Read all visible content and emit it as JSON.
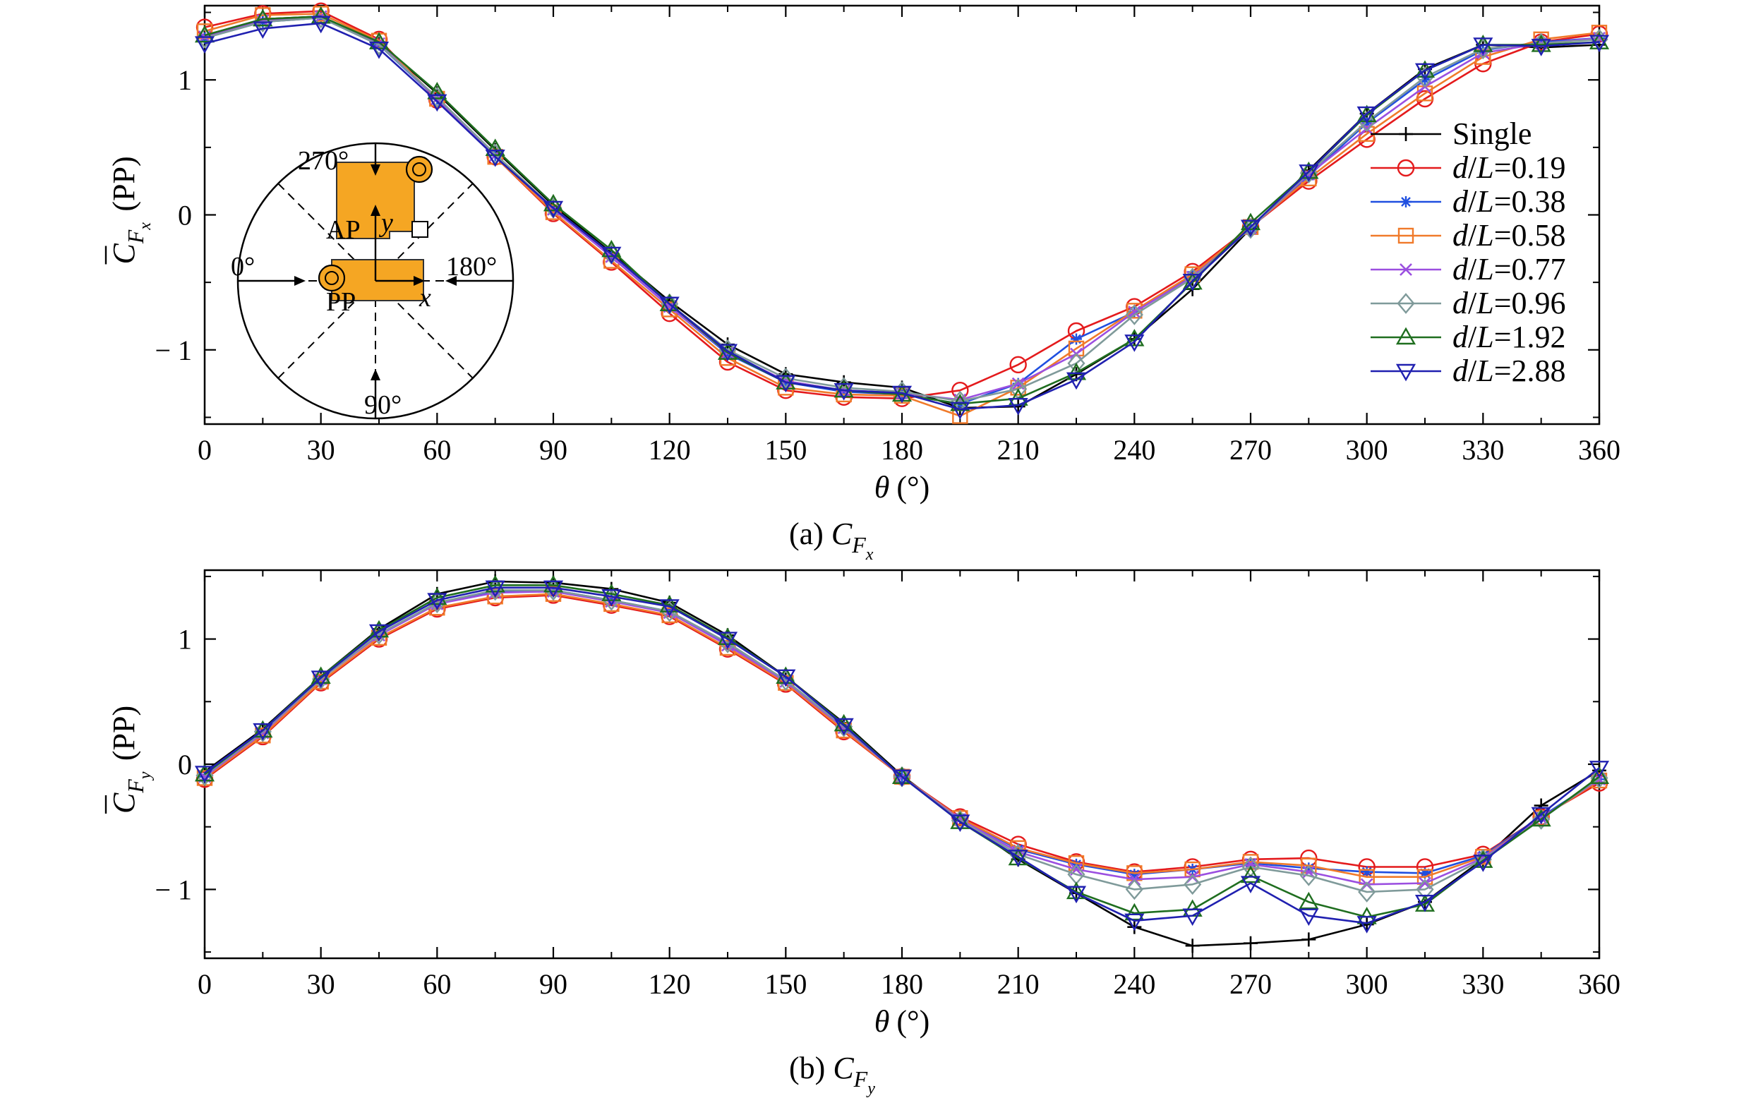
{
  "colors": {
    "Single": "#000000",
    "d/L=0.19": "#e41a1c",
    "d/L=0.38": "#1f4fe0",
    "d/L=0.58": "#f07a2a",
    "d/L=0.77": "#9b4fe0",
    "d/L=0.96": "#7f9a9a",
    "d/L=1.92": "#1f6e1f",
    "d/L=2.88": "#2020b0",
    "inset_fill": "#f5a623"
  },
  "inset": {
    "labels": {
      "deg270": "270°",
      "deg0": "0°",
      "deg180": "180°",
      "deg90": "90°",
      "ap": "AP",
      "pp": "PP",
      "x": "x",
      "y": "y"
    }
  },
  "chart_data": [
    {
      "type": "line",
      "panel": "a",
      "caption": {
        "prefix": "(a) ",
        "symbol": "C",
        "sub": "F",
        "subsub": "x"
      },
      "ylabel": {
        "symbol": "C",
        "sub": "F",
        "subsub": "x",
        "suffix": "(PP)"
      },
      "xlabel": {
        "symbol": "θ",
        "suffix": "(°)"
      },
      "xlim": [
        0,
        360
      ],
      "ylim": [
        -1.55,
        1.55
      ],
      "xticks": [
        "0",
        "30",
        "60",
        "90",
        "120",
        "150",
        "180",
        "210",
        "240",
        "270",
        "300",
        "330",
        "360"
      ],
      "yticks": [
        {
          "v": 1,
          "label": "1"
        },
        {
          "v": 0,
          "label": "0"
        },
        {
          "v": -1,
          "label": "− 1"
        }
      ],
      "legend": {
        "placement": "right"
      },
      "x": [
        0,
        15,
        30,
        45,
        60,
        75,
        90,
        105,
        120,
        135,
        150,
        165,
        180,
        195,
        210,
        225,
        240,
        255,
        270,
        285,
        300,
        315,
        330,
        345,
        360
      ],
      "series": [
        {
          "name": "Single",
          "marker": "plus",
          "values": [
            1.33,
            1.45,
            1.47,
            1.28,
            0.9,
            0.48,
            0.07,
            -0.28,
            -0.64,
            -0.96,
            -1.18,
            -1.24,
            -1.28,
            -1.43,
            -1.42,
            -1.18,
            -0.92,
            -0.55,
            -0.1,
            0.33,
            0.75,
            1.08,
            1.26,
            1.24,
            1.26
          ]
        },
        {
          "name": "d/L=0.19",
          "marker": "circle",
          "values": [
            1.39,
            1.49,
            1.51,
            1.3,
            0.85,
            0.43,
            0.01,
            -0.35,
            -0.73,
            -1.09,
            -1.3,
            -1.35,
            -1.36,
            -1.3,
            -1.11,
            -0.86,
            -0.68,
            -0.42,
            -0.09,
            0.25,
            0.56,
            0.86,
            1.12,
            1.28,
            1.34
          ]
        },
        {
          "name": "d/L=0.38",
          "marker": "asterisk",
          "values": [
            1.31,
            1.43,
            1.46,
            1.26,
            0.86,
            0.44,
            0.04,
            -0.31,
            -0.68,
            -1.03,
            -1.24,
            -1.31,
            -1.33,
            -1.4,
            -1.25,
            -0.92,
            -0.72,
            -0.45,
            -0.09,
            0.29,
            0.68,
            1.0,
            1.22,
            1.28,
            1.31
          ]
        },
        {
          "name": "d/L=0.58",
          "marker": "square",
          "values": [
            1.36,
            1.48,
            1.49,
            1.29,
            0.86,
            0.43,
            0.02,
            -0.34,
            -0.7,
            -1.06,
            -1.28,
            -1.33,
            -1.34,
            -1.49,
            -1.28,
            -0.99,
            -0.71,
            -0.44,
            -0.09,
            0.27,
            0.6,
            0.9,
            1.17,
            1.3,
            1.35
          ]
        },
        {
          "name": "d/L=0.77",
          "marker": "cross",
          "values": [
            1.32,
            1.44,
            1.47,
            1.27,
            0.86,
            0.44,
            0.04,
            -0.31,
            -0.68,
            -1.02,
            -1.23,
            -1.3,
            -1.32,
            -1.37,
            -1.25,
            -1.03,
            -0.72,
            -0.46,
            -0.1,
            0.3,
            0.64,
            0.95,
            1.2,
            1.27,
            1.31
          ]
        },
        {
          "name": "d/L=0.96",
          "marker": "diamond",
          "values": [
            1.31,
            1.43,
            1.46,
            1.26,
            0.87,
            0.45,
            0.05,
            -0.29,
            -0.66,
            -1.0,
            -1.21,
            -1.28,
            -1.31,
            -1.38,
            -1.29,
            -1.1,
            -0.74,
            -0.47,
            -0.1,
            0.31,
            0.69,
            1.02,
            1.23,
            1.27,
            1.3
          ]
        },
        {
          "name": "d/L=1.92",
          "marker": "triangle-up",
          "values": [
            1.33,
            1.45,
            1.47,
            1.28,
            0.91,
            0.49,
            0.08,
            -0.26,
            -0.66,
            -1.02,
            -1.24,
            -1.3,
            -1.33,
            -1.4,
            -1.36,
            -1.17,
            -0.92,
            -0.5,
            -0.06,
            0.32,
            0.74,
            1.07,
            1.26,
            1.26,
            1.28
          ]
        },
        {
          "name": "d/L=2.88",
          "marker": "triangle-down",
          "values": [
            1.27,
            1.38,
            1.42,
            1.23,
            0.84,
            0.43,
            0.05,
            -0.29,
            -0.66,
            -1.01,
            -1.24,
            -1.3,
            -1.32,
            -1.44,
            -1.41,
            -1.22,
            -0.94,
            -0.49,
            -0.09,
            0.32,
            0.75,
            1.07,
            1.26,
            1.25,
            1.28
          ]
        }
      ]
    },
    {
      "type": "line",
      "panel": "b",
      "caption": {
        "prefix": "(b) ",
        "symbol": "C",
        "sub": "F",
        "subsub": "y"
      },
      "ylabel": {
        "symbol": "C",
        "sub": "F",
        "subsub": "y",
        "suffix": "(PP)"
      },
      "xlabel": {
        "symbol": "θ",
        "suffix": "(°)"
      },
      "xlim": [
        0,
        360
      ],
      "ylim": [
        -1.55,
        1.55
      ],
      "xticks": [
        "0",
        "30",
        "60",
        "90",
        "120",
        "150",
        "180",
        "210",
        "240",
        "270",
        "300",
        "330",
        "360"
      ],
      "yticks": [
        {
          "v": 1,
          "label": "1"
        },
        {
          "v": 0,
          "label": "0"
        },
        {
          "v": -1,
          "label": "− 1"
        }
      ],
      "x": [
        0,
        15,
        30,
        45,
        60,
        75,
        90,
        105,
        120,
        135,
        150,
        165,
        180,
        195,
        210,
        225,
        240,
        255,
        270,
        285,
        300,
        315,
        330,
        345,
        360
      ],
      "series": [
        {
          "name": "Single",
          "marker": "plus",
          "values": [
            -0.06,
            0.28,
            0.7,
            1.08,
            1.36,
            1.46,
            1.45,
            1.4,
            1.29,
            1.03,
            0.7,
            0.33,
            -0.09,
            -0.44,
            -0.76,
            -1.03,
            -1.3,
            -1.45,
            -1.43,
            -1.4,
            -1.28,
            -1.1,
            -0.76,
            -0.33,
            -0.05
          ]
        },
        {
          "name": "d/L=0.19",
          "marker": "circle",
          "values": [
            -0.12,
            0.22,
            0.65,
            1.0,
            1.24,
            1.33,
            1.35,
            1.27,
            1.18,
            0.92,
            0.64,
            0.26,
            -0.1,
            -0.42,
            -0.64,
            -0.78,
            -0.86,
            -0.82,
            -0.76,
            -0.75,
            -0.82,
            -0.82,
            -0.72,
            -0.42,
            -0.15
          ]
        },
        {
          "name": "d/L=0.38",
          "marker": "asterisk",
          "values": [
            -0.1,
            0.25,
            0.68,
            1.04,
            1.29,
            1.38,
            1.39,
            1.31,
            1.22,
            0.96,
            0.67,
            0.3,
            -0.1,
            -0.43,
            -0.68,
            -0.8,
            -0.88,
            -0.84,
            -0.79,
            -0.83,
            -0.86,
            -0.87,
            -0.73,
            -0.42,
            -0.12
          ]
        },
        {
          "name": "d/L=0.58",
          "marker": "square",
          "values": [
            -0.11,
            0.23,
            0.66,
            1.01,
            1.25,
            1.34,
            1.36,
            1.28,
            1.19,
            0.93,
            0.65,
            0.27,
            -0.1,
            -0.43,
            -0.67,
            -0.79,
            -0.87,
            -0.84,
            -0.78,
            -0.81,
            -0.9,
            -0.9,
            -0.74,
            -0.43,
            -0.13
          ]
        },
        {
          "name": "d/L=0.77",
          "marker": "cross",
          "values": [
            -0.1,
            0.25,
            0.68,
            1.03,
            1.28,
            1.37,
            1.38,
            1.3,
            1.21,
            0.95,
            0.66,
            0.29,
            -0.1,
            -0.44,
            -0.7,
            -0.84,
            -0.92,
            -0.9,
            -0.8,
            -0.86,
            -0.96,
            -0.95,
            -0.75,
            -0.43,
            -0.12
          ]
        },
        {
          "name": "d/L=0.96",
          "marker": "diamond",
          "values": [
            -0.09,
            0.26,
            0.68,
            1.04,
            1.29,
            1.39,
            1.39,
            1.31,
            1.22,
            0.97,
            0.67,
            0.3,
            -0.1,
            -0.45,
            -0.72,
            -0.88,
            -1.0,
            -0.96,
            -0.82,
            -0.89,
            -1.02,
            -1.0,
            -0.76,
            -0.44,
            -0.11
          ]
        },
        {
          "name": "d/L=1.92",
          "marker": "triangle-up",
          "values": [
            -0.08,
            0.27,
            0.7,
            1.07,
            1.33,
            1.43,
            1.43,
            1.36,
            1.27,
            1.01,
            0.7,
            0.32,
            -0.1,
            -0.46,
            -0.75,
            -1.02,
            -1.19,
            -1.16,
            -0.89,
            -1.1,
            -1.22,
            -1.12,
            -0.77,
            -0.44,
            -0.1
          ]
        },
        {
          "name": "d/L=2.88",
          "marker": "triangle-down",
          "values": [
            -0.07,
            0.27,
            0.69,
            1.06,
            1.31,
            1.41,
            1.41,
            1.34,
            1.26,
            1.0,
            0.7,
            0.31,
            -0.1,
            -0.46,
            -0.74,
            -1.03,
            -1.25,
            -1.21,
            -0.95,
            -1.21,
            -1.27,
            -1.1,
            -0.78,
            -0.4,
            -0.03
          ]
        }
      ]
    }
  ]
}
